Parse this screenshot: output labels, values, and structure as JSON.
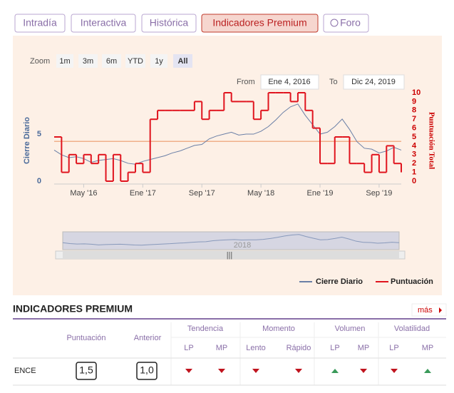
{
  "tabs": [
    "Intradía",
    "Interactiva",
    "Histórica",
    "Indicadores Premium",
    "Foro"
  ],
  "active_tab": 3,
  "zoom": {
    "label": "Zoom",
    "buttons": [
      "1m",
      "3m",
      "6m",
      "YTD",
      "1y",
      "All"
    ],
    "active": 5
  },
  "range": {
    "from_label": "From",
    "from": "Ene 4, 2016",
    "to_label": "To",
    "to": "Dic 24, 2019"
  },
  "chart": {
    "type": "line",
    "ylabel": "Cierre Diario",
    "y2label": "Puntuación Total",
    "x": [
      "2016-01",
      "2016-02",
      "2016-03",
      "2016-04",
      "2016-05",
      "2016-06",
      "2016-07",
      "2016-08",
      "2016-09",
      "2016-10",
      "2016-11",
      "2016-12",
      "2017-01",
      "2017-02",
      "2017-03",
      "2017-04",
      "2017-05",
      "2017-06",
      "2017-07",
      "2017-08",
      "2017-09",
      "2017-10",
      "2017-11",
      "2017-12",
      "2018-01",
      "2018-02",
      "2018-03",
      "2018-04",
      "2018-05",
      "2018-06",
      "2018-07",
      "2018-08",
      "2018-09",
      "2018-10",
      "2018-11",
      "2018-12",
      "2019-01",
      "2019-02",
      "2019-03",
      "2019-04",
      "2019-05",
      "2019-06",
      "2019-07",
      "2019-08",
      "2019-09",
      "2019-10",
      "2019-11",
      "2019-12"
    ],
    "xlim": [
      "2016-01",
      "2019-12"
    ],
    "xticks": [
      {
        "value": "2016-05",
        "label": "May '16"
      },
      {
        "value": "2017-01",
        "label": "Ene '17"
      },
      {
        "value": "2017-09",
        "label": "Sep '17"
      },
      {
        "value": "2018-05",
        "label": "May '18"
      },
      {
        "value": "2019-01",
        "label": "Ene '19"
      },
      {
        "value": "2019-09",
        "label": "Sep '19"
      }
    ],
    "ylim": [
      0,
      9.4
    ],
    "yticks": [
      0,
      5
    ],
    "y2lim": [
      0,
      10
    ],
    "y2ticks": [
      0,
      1,
      2,
      3,
      4,
      5,
      6,
      7,
      8,
      9,
      10
    ],
    "plot_line": {
      "value": 4.5,
      "axis": "y2",
      "color": "#f0b08a"
    },
    "series": [
      {
        "name": "Cierre Diario",
        "color": "#6a7fa6",
        "values": [
          3.3,
          2.8,
          2.5,
          2.6,
          2.4,
          2.0,
          2.2,
          2.3,
          2.4,
          2.2,
          1.9,
          1.8,
          2.1,
          2.3,
          2.5,
          2.7,
          3.0,
          3.2,
          3.5,
          3.8,
          3.9,
          4.5,
          4.8,
          5.0,
          5.2,
          4.9,
          5.0,
          5.0,
          5.3,
          5.8,
          6.5,
          7.3,
          7.9,
          8.2,
          7.0,
          6.0,
          5.0,
          5.2,
          5.8,
          6.6,
          5.5,
          4.2,
          3.5,
          3.4,
          3.0,
          3.2,
          3.6,
          3.3
        ]
      },
      {
        "name": "Puntuación",
        "color": "#e0141e",
        "axis": "y2",
        "values": [
          5,
          1,
          3,
          2,
          3,
          2,
          3,
          0,
          3,
          0,
          1,
          2,
          1,
          7,
          8,
          8,
          8,
          8,
          8,
          9,
          7,
          8,
          8,
          10,
          9,
          9,
          9,
          7,
          8,
          10,
          10,
          10,
          9,
          10,
          8,
          6,
          2,
          2,
          5,
          5,
          2,
          2,
          1,
          3,
          1,
          4,
          2,
          1
        ]
      }
    ],
    "navigator_label": "2018"
  },
  "section": {
    "title": "INDICADORES PREMIUM",
    "more": "más"
  },
  "table": {
    "score_headers": [
      "Puntuación",
      "Anterior"
    ],
    "groups": [
      "Tendencia",
      "Momento",
      "Volumen",
      "Volatilidad"
    ],
    "subheaders": [
      "LP",
      "MP",
      "Lento",
      "Rápido",
      "LP",
      "MP",
      "LP",
      "MP"
    ],
    "rows": [
      {
        "name": "ENCE",
        "score": "1,5",
        "previous": "1,0",
        "signals": [
          "down",
          "down",
          "down",
          "down",
          "up",
          "down",
          "down",
          "up"
        ]
      }
    ]
  }
}
